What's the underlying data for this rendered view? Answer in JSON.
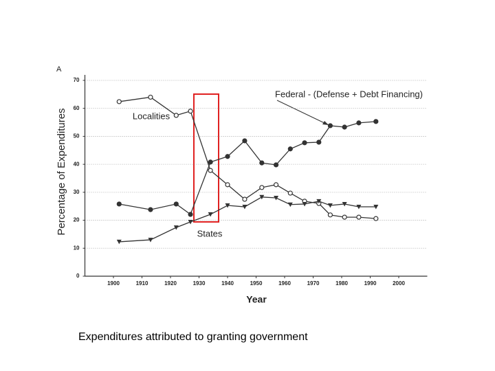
{
  "chart_data": {
    "type": "line",
    "panel_label": "A",
    "y_label": "Percentage of Expenditures",
    "x_label": "Year",
    "xlim": [
      1890,
      2010
    ],
    "xticks": [
      1900,
      1910,
      1920,
      1930,
      1940,
      1950,
      1960,
      1970,
      1980,
      1990,
      2000
    ],
    "ylim": [
      0,
      70
    ],
    "yticks": [
      0,
      10,
      20,
      30,
      40,
      50,
      60,
      70
    ],
    "grid": true,
    "x": [
      1902,
      1913,
      1922,
      1927,
      1934,
      1940,
      1946,
      1952,
      1957,
      1962,
      1967,
      1972,
      1976,
      1981,
      1986,
      1992
    ],
    "series": [
      {
        "name": "Localities",
        "color": "#333333",
        "marker": "open-circle",
        "values": [
          62.4,
          64,
          57.5,
          59,
          37.8,
          32.7,
          27.5,
          31.7,
          32.7,
          29.7,
          26.8,
          26,
          21.9,
          21.1,
          21.1,
          20.6
        ]
      },
      {
        "name": "Federal - (Defense + Debt Financing)",
        "color": "#333333",
        "marker": "filled-circle",
        "values": [
          25.8,
          23.8,
          25.8,
          22.1,
          40.8,
          42.8,
          48.4,
          40.5,
          39.8,
          45.5,
          47.7,
          47.9,
          53.8,
          53.3,
          54.8,
          55.3
        ]
      },
      {
        "name": "States",
        "color": "#333333",
        "marker": "triangle-down",
        "values": [
          12.3,
          13,
          17.4,
          19.4,
          22.1,
          25.3,
          24.8,
          28.3,
          28,
          25.6,
          25.8,
          26.8,
          25.3,
          25.8,
          24.8,
          24.8
        ]
      }
    ]
  },
  "caption": "Expenditures attributed to granting government"
}
